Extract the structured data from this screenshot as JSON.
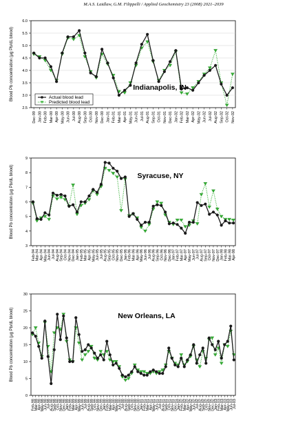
{
  "header": "M.A.S. Laidlaw, G.M. Filippelli / Applied Geochemistry 23 (2008) 2021–2039",
  "chart_data": [
    {
      "type": "line",
      "title": "Indianapolis, IN",
      "ylabel": "Blood Pb concentration (µg Pb/dL blood)",
      "ylim": [
        2.5,
        6.0
      ],
      "yticks": [
        "2.5",
        "3.0",
        "3.5",
        "4.0",
        "4.5",
        "5.0",
        "5.5",
        "6.0"
      ],
      "grid": true,
      "legend": "bottom-left",
      "categories": [
        "Dec-99",
        "Jan-00",
        "Feb-00",
        "Mar-00",
        "Apr-00",
        "May-00",
        "Jun-00",
        "Jul-00",
        "Aug-00",
        "Sep-00",
        "Oct-00",
        "Nov-00",
        "Dec-00",
        "Jan-01",
        "Feb-01",
        "Mar-01",
        "Apr-01",
        "May-01",
        "Jun-01",
        "Jul-01",
        "Aug-01",
        "Sep-01",
        "Oct-01",
        "Nov-01",
        "Dec-01",
        "Jan-02",
        "Feb-02",
        "Mar-02",
        "Apr-02",
        "May-02",
        "Jun-02",
        "Jul-02",
        "Aug-02",
        "Sep-02",
        "Oct-02",
        "Nov-02"
      ],
      "series": [
        {
          "name": "Actual blood lead",
          "color": "#1a1a1a",
          "style": "solid",
          "values": [
            4.7,
            4.5,
            4.5,
            4.15,
            3.55,
            4.7,
            5.35,
            5.35,
            5.6,
            4.7,
            3.9,
            3.75,
            4.85,
            4.3,
            3.7,
            3.0,
            3.2,
            3.4,
            4.3,
            5.05,
            5.45,
            4.4,
            3.55,
            3.95,
            4.35,
            4.8,
            3.25,
            3.3,
            3.2,
            3.5,
            3.8,
            4.0,
            4.2,
            3.45,
            3.0,
            3.3
          ]
        },
        {
          "name": "Predicted blood lead",
          "color": "#33b033",
          "style": "dotted",
          "values": [
            4.65,
            4.55,
            4.4,
            4.0,
            3.6,
            4.65,
            5.3,
            5.25,
            5.4,
            4.55,
            3.95,
            3.7,
            4.65,
            4.25,
            3.8,
            3.15,
            3.1,
            3.5,
            4.2,
            4.9,
            5.15,
            4.35,
            3.6,
            4.0,
            4.2,
            4.75,
            3.1,
            3.05,
            3.3,
            3.55,
            3.85,
            4.1,
            4.8,
            3.5,
            2.6,
            3.85
          ]
        }
      ]
    },
    {
      "type": "line",
      "title": "Syracuse, NY",
      "ylabel": "Blood Pb concentration (µg Pb/dL blood)",
      "ylim": [
        3,
        9
      ],
      "yticks": [
        "3",
        "4",
        "5",
        "6",
        "7",
        "8",
        "9"
      ],
      "grid": false,
      "categories": [
        "Feb-94",
        "Mar-94",
        "Apr-94",
        "May-94",
        "Jun-94",
        "Jul-94",
        "Aug-94",
        "Sep-94",
        "Oct-94",
        "Nov-94",
        "Dec-94",
        "Jan-95",
        "Feb-95",
        "Mar-95",
        "Apr-95",
        "May-95",
        "Jun-95",
        "Jul-95",
        "Aug-95",
        "Sep-95",
        "Oct-95",
        "Nov-95",
        "Dec-95",
        "Jan-96",
        "Feb-96",
        "Mar-96",
        "Apr-96",
        "May-96",
        "Jun-96",
        "Jul-96",
        "Aug-96",
        "Sep-96",
        "Oct-96",
        "Nov-96",
        "Dec-96",
        "Jan-97",
        "Feb-97",
        "Mar-97",
        "Apr-97",
        "May-97",
        "Jun-97",
        "Jul-97",
        "Aug-97",
        "Sep-97",
        "Oct-97",
        "Nov-97",
        "Dec-97",
        "Jan-98",
        "Feb-98",
        "Mar-98",
        "Apr-98"
      ],
      "series": [
        {
          "name": "Actual blood lead",
          "color": "#1a1a1a",
          "style": "solid",
          "values": [
            6.0,
            4.85,
            4.8,
            5.25,
            5.1,
            6.6,
            6.45,
            6.5,
            6.4,
            5.7,
            5.8,
            5.3,
            6.0,
            6.0,
            6.4,
            6.85,
            6.65,
            7.2,
            8.7,
            8.65,
            8.3,
            8.1,
            7.6,
            7.7,
            5.0,
            5.2,
            4.8,
            4.4,
            4.6,
            4.6,
            5.7,
            5.8,
            5.75,
            5.3,
            4.5,
            4.55,
            4.45,
            4.2,
            3.85,
            4.6,
            4.6,
            5.95,
            5.75,
            5.85,
            5.15,
            5.3,
            5.1,
            4.4,
            4.7,
            4.55,
            4.55
          ]
        },
        {
          "name": "Predicted blood lead",
          "color": "#33b033",
          "style": "dotted",
          "values": [
            5.9,
            4.7,
            4.9,
            5.0,
            4.8,
            6.4,
            6.2,
            6.3,
            6.15,
            5.7,
            7.15,
            5.15,
            5.75,
            5.9,
            6.15,
            6.75,
            6.5,
            7.05,
            8.3,
            8.15,
            7.95,
            7.7,
            5.4,
            7.55,
            5.05,
            5.15,
            4.9,
            4.25,
            4.0,
            4.45,
            5.5,
            6.0,
            5.9,
            5.1,
            4.6,
            4.45,
            4.75,
            4.75,
            4.3,
            4.4,
            4.7,
            4.5,
            6.5,
            7.25,
            5.65,
            6.75,
            5.5,
            5.0,
            4.8,
            4.8,
            4.75
          ]
        }
      ]
    },
    {
      "type": "line",
      "title": "New Orleans, LA",
      "ylabel": "Blood Pb concentration (µg Pb/dL blood)",
      "ylim": [
        0,
        30
      ],
      "yticks": [
        "0",
        "5",
        "10",
        "15",
        "20",
        "25",
        "30"
      ],
      "grid": false,
      "categories": [
        "Feb-98",
        "Mar-98",
        "Apr-98",
        "May-98",
        "Jun-98",
        "Jul-98",
        "Aug-98",
        "Sep-98",
        "Oct-98",
        "Nov-98",
        "Dec-98",
        "Jan-99",
        "Feb-99",
        "Mar-99",
        "Apr-99",
        "May-99",
        "Jun-99",
        "Jul-99",
        "Aug-99",
        "Sep-99",
        "Oct-99",
        "Nov-99",
        "Dec-99",
        "Jan-00",
        "Feb-00",
        "Mar-00",
        "Apr-00",
        "May-00",
        "Jun-00",
        "Jul-00",
        "Aug-00",
        "Sep-00",
        "Oct-00",
        "Nov-00",
        "Dec-00",
        "Jan-01",
        "Feb-01",
        "Mar-01",
        "Apr-01",
        "May-01",
        "Jun-01",
        "Jul-01",
        "Aug-01",
        "Sep-01",
        "Oct-01",
        "Nov-01",
        "Dec-01",
        "Jan-02",
        "Feb-02",
        "Mar-02",
        "Apr-02",
        "May-02",
        "Jun-02",
        "Jul-02",
        "Aug-02",
        "Sep-02",
        "Oct-02",
        "Nov-02",
        "Dec-02",
        "Jan-03",
        "Feb-03",
        "Mar-03",
        "Apr-03",
        "May-03",
        "Jun-03",
        "Jul-03"
      ],
      "series": [
        {
          "name": "Actual blood lead",
          "color": "#1a1a1a",
          "style": "solid",
          "values": [
            18.5,
            17.5,
            14.5,
            11.0,
            22.0,
            11.5,
            3.5,
            13.5,
            24.0,
            16.5,
            23.5,
            17.0,
            10.0,
            10.0,
            23.0,
            18.0,
            13.0,
            13.5,
            15.0,
            14.0,
            12.5,
            11.0,
            12.0,
            10.5,
            16.0,
            12.0,
            9.0,
            9.5,
            8.0,
            6.0,
            5.5,
            6.0,
            7.0,
            8.5,
            7.0,
            6.5,
            6.0,
            6.0,
            7.0,
            7.5,
            7.0,
            6.5,
            6.5,
            8.5,
            14.0,
            11.0,
            9.0,
            8.5,
            11.0,
            8.5,
            10.5,
            12.0,
            15.0,
            9.5,
            12.0,
            14.0,
            9.5,
            17.0,
            15.0,
            13.5,
            16.0,
            11.0,
            15.0,
            16.0,
            20.5,
            10.5
          ]
        },
        {
          "name": "Predicted blood lead",
          "color": "#33b033",
          "style": "dotted",
          "values": [
            18.0,
            20.0,
            15.5,
            11.5,
            21.5,
            14.5,
            7.0,
            18.5,
            20.0,
            19.5,
            24.0,
            16.0,
            10.5,
            10.0,
            20.0,
            15.5,
            10.5,
            12.0,
            13.0,
            14.5,
            11.0,
            10.5,
            13.0,
            12.0,
            13.0,
            10.5,
            10.0,
            10.0,
            8.5,
            5.5,
            4.5,
            5.0,
            6.5,
            9.0,
            7.5,
            7.0,
            7.0,
            6.5,
            6.5,
            7.0,
            6.5,
            7.0,
            7.5,
            9.0,
            13.0,
            11.0,
            9.5,
            9.0,
            12.0,
            9.0,
            10.0,
            11.5,
            14.5,
            10.5,
            8.5,
            13.0,
            11.0,
            16.5,
            17.0,
            12.0,
            14.0,
            9.5,
            15.0,
            14.5,
            19.0,
            12.0
          ]
        }
      ]
    }
  ]
}
